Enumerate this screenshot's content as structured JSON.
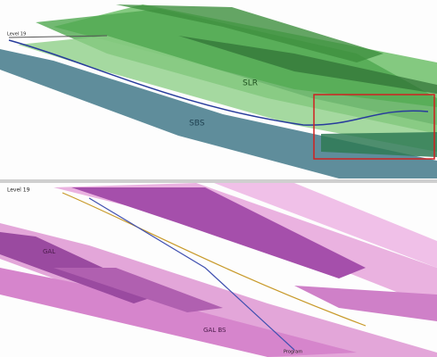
{
  "top_panel": {
    "labels": [
      "Level 19",
      "SLR",
      "SBS"
    ]
  },
  "bottom_panel": {
    "labels": [
      "Level 19",
      "GAL",
      "GAL BS",
      "Program"
    ]
  }
}
